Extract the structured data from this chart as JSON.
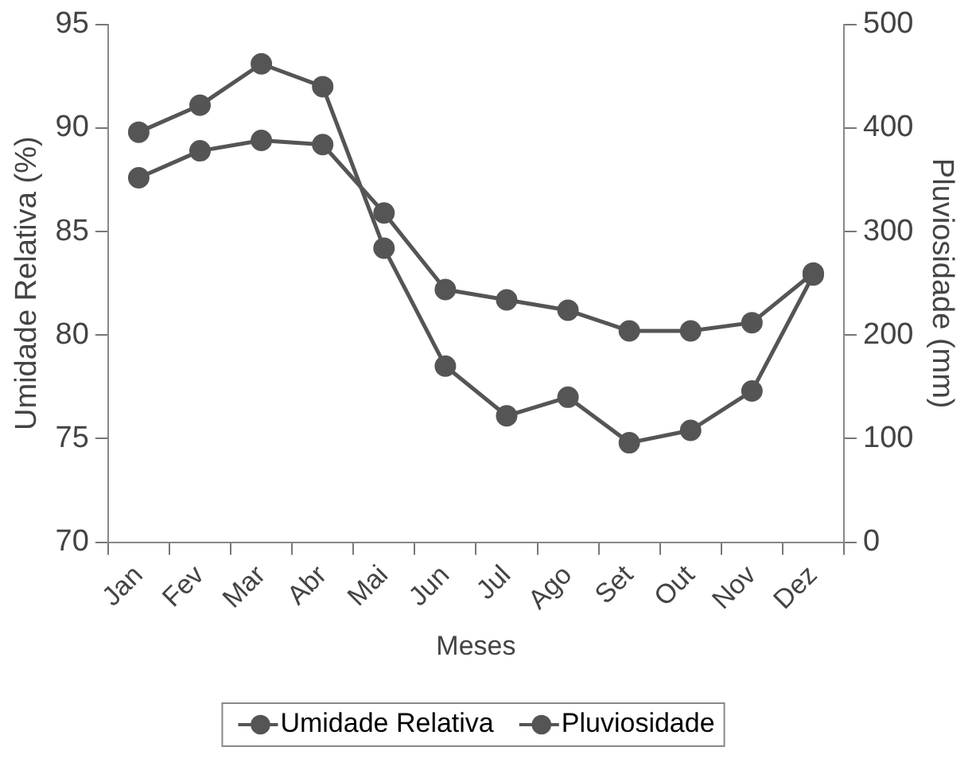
{
  "chart_data": {
    "type": "line",
    "xlabel": "Meses",
    "ylabel": "Umidade Relativa (%)",
    "y2label": "Pluviosidade (mm)",
    "categories": [
      "Jan",
      "Fev",
      "Mar",
      "Abr",
      "Mai",
      "Jun",
      "Jul",
      "Ago",
      "Set",
      "Out",
      "Nov",
      "Dez"
    ],
    "series": [
      {
        "name": "Umidade Relativa",
        "color": "#555555",
        "values": [
          87.6,
          88.9,
          89.4,
          89.2,
          85.9,
          82.2,
          81.7,
          81.2,
          80.2,
          80.2,
          80.6,
          83.0
        ]
      },
      {
        "name": "Pluviosidade",
        "color": "#555555",
        "axis": "y2",
        "values": [
          396,
          422,
          462,
          440,
          284,
          170,
          122,
          140,
          96,
          108,
          146,
          258
        ]
      }
    ],
    "ylim": [
      70,
      95
    ],
    "yticks": [
      70,
      75,
      80,
      85,
      90,
      95
    ],
    "y2lim": [
      0,
      500
    ],
    "y2ticks": [
      0,
      100,
      200,
      300,
      400,
      500
    ],
    "grid": false,
    "legend": "bottom",
    "marker": "circle",
    "line_style": "solid"
  }
}
